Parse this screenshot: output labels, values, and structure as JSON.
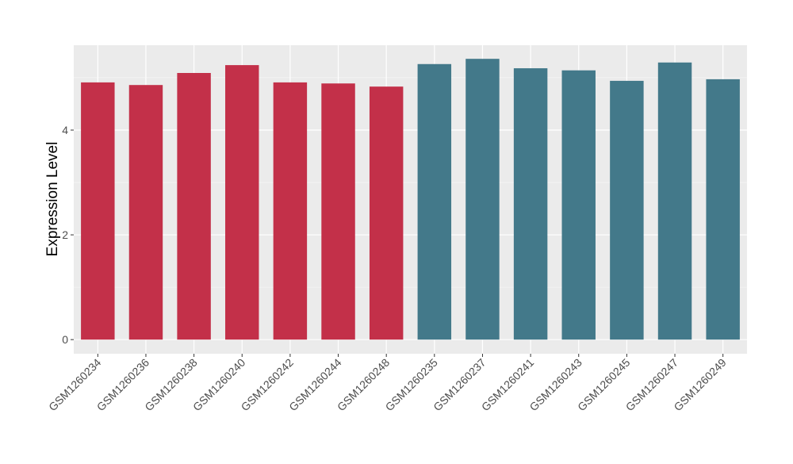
{
  "chart_data": {
    "type": "bar",
    "title": "",
    "xlabel": "",
    "ylabel": "Expression Level",
    "ylim": [
      -0.27,
      5.62
    ],
    "yticks": [
      0,
      2,
      4
    ],
    "grid": true,
    "legend": "none",
    "categories": [
      "GSM1260234",
      "GSM1260236",
      "GSM1260238",
      "GSM1260240",
      "GSM1260242",
      "GSM1260244",
      "GSM1260248",
      "GSM1260235",
      "GSM1260237",
      "GSM1260241",
      "GSM1260243",
      "GSM1260245",
      "GSM1260247",
      "GSM1260249"
    ],
    "values": [
      4.91,
      4.86,
      5.09,
      5.24,
      4.91,
      4.89,
      4.83,
      5.26,
      5.36,
      5.18,
      5.14,
      4.94,
      5.29,
      4.97
    ],
    "groups": [
      0,
      0,
      0,
      0,
      0,
      0,
      0,
      1,
      1,
      1,
      1,
      1,
      1,
      1
    ],
    "group_colors": [
      "#C33049",
      "#43798A"
    ]
  }
}
